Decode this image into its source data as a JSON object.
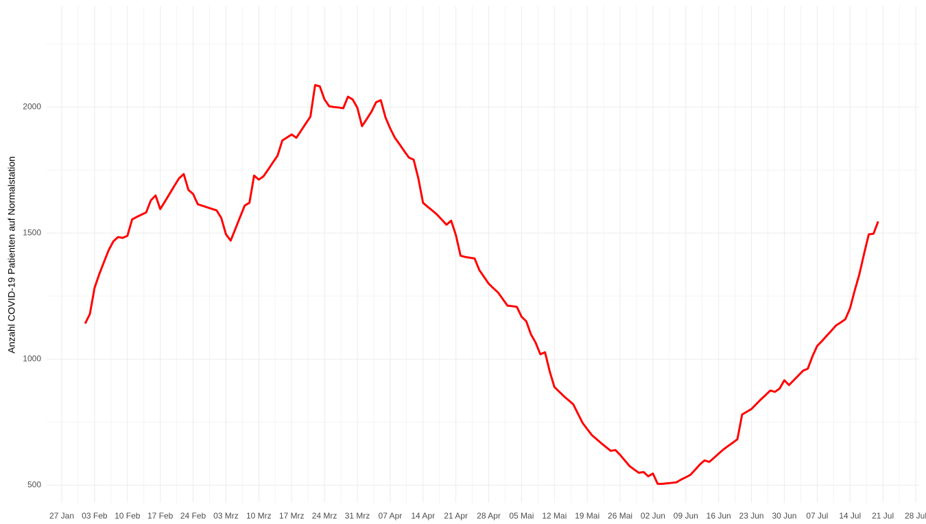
{
  "chart_data": {
    "type": "line",
    "y_label": "Anzahl COVID-19 Patienten auf Normalstation",
    "categories": [
      "27 Jan",
      null,
      null,
      null,
      null,
      null,
      null,
      "03 Feb",
      null,
      null,
      null,
      null,
      null,
      null,
      "10 Feb",
      null,
      null,
      null,
      null,
      null,
      null,
      "17 Feb",
      null,
      null,
      null,
      null,
      null,
      null,
      "24 Feb",
      null,
      null,
      null,
      null,
      null,
      null,
      "03 Mrz",
      null,
      null,
      null,
      null,
      null,
      null,
      "10 Mrz",
      null,
      null,
      null,
      null,
      null,
      null,
      "17 Mrz",
      null,
      null,
      null,
      null,
      null,
      null,
      "24 Mrz",
      null,
      null,
      null,
      null,
      null,
      null,
      "31 Mrz",
      null,
      null,
      null,
      null,
      null,
      null,
      "07 Apr",
      null,
      null,
      null,
      null,
      null,
      null,
      "14 Apr",
      null,
      null,
      null,
      null,
      null,
      null,
      "21 Apr",
      null,
      null,
      null,
      null,
      null,
      null,
      "28 Apr",
      null,
      null,
      null,
      null,
      null,
      null,
      "05 Mai",
      null,
      null,
      null,
      null,
      null,
      null,
      "12 Mai",
      null,
      null,
      null,
      null,
      null,
      null,
      "19 Mai",
      null,
      null,
      null,
      null,
      null,
      null,
      "26 Mai",
      null,
      null,
      null,
      null,
      null,
      null,
      "02 Jun",
      null,
      null,
      null,
      null,
      null,
      null,
      "09 Jun",
      null,
      null,
      null,
      null,
      null,
      null,
      "16 Jun",
      null,
      null,
      null,
      null,
      null,
      null,
      "23 Jun",
      null,
      null,
      null,
      null,
      null,
      null,
      "30 Jun",
      null,
      null,
      null,
      null,
      null,
      null,
      "07 Jul",
      null,
      null,
      null,
      null,
      null,
      null,
      "14 Jul",
      null,
      null,
      null,
      null,
      null,
      null,
      "21 Jul",
      null,
      null,
      null,
      null,
      null,
      null,
      "28 Jul"
    ],
    "series": [
      {
        "color": "#ff0000",
        "values": [
          null,
          null,
          null,
          null,
          null,
          1141,
          1179,
          1283,
          1337,
          1385,
          1432,
          1467,
          1484,
          1481,
          1489,
          1554,
          1564,
          1573,
          1582,
          1630,
          1649,
          1595,
          1625,
          1656,
          1687,
          1717,
          1734,
          1671,
          1655,
          1614,
          1608,
          1602,
          1596,
          1590,
          1560,
          1495,
          1470,
          1516,
          1563,
          1609,
          1620,
          1728,
          1712,
          1725,
          1752,
          1780,
          1807,
          1867,
          1879,
          1891,
          1878,
          1906,
          1934,
          1962,
          2087,
          2082,
          2030,
          2003,
          2000,
          1998,
          1995,
          2041,
          2030,
          1997,
          1924,
          1952,
          1981,
          2019,
          2027,
          1959,
          1915,
          1878,
          1852,
          1825,
          1799,
          1791,
          1717,
          1620,
          1604,
          1589,
          1573,
          1553,
          1533,
          1549,
          1492,
          1410,
          1405,
          1402,
          1399,
          1353,
          1326,
          1299,
          1281,
          1264,
          1238,
          1212,
          1210,
          1207,
          1168,
          1150,
          1098,
          1065,
          1019,
          1027,
          951,
          889,
          871,
          853,
          837,
          821,
          784,
          747,
          722,
          698,
          682,
          666,
          651,
          636,
          639,
          620,
          598,
          576,
          562,
          549,
          552,
          535,
          546,
          505,
          505,
          507,
          509,
          511,
          522,
          531,
          541,
          561,
          582,
          598,
          592,
          608,
          625,
          641,
          655,
          668,
          682,
          780,
          791,
          802,
          821,
          840,
          857,
          875,
          870,
          883,
          916,
          897,
          916,
          935,
          954,
          962,
          1011,
          1052,
          1071,
          1092,
          1112,
          1133,
          1145,
          1158,
          1201,
          1272,
          1337,
          1418,
          1495,
          1497,
          1546,
          null,
          null,
          null,
          null,
          null,
          null,
          null,
          null
        ]
      }
    ],
    "ylim": [
      430,
      2400
    ],
    "yticks": [
      500,
      1000,
      1500,
      2000
    ],
    "grid": true
  }
}
